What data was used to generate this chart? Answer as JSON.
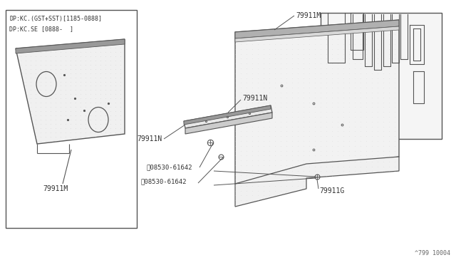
{
  "background_color": "#ffffff",
  "line_color": "#555555",
  "text_color": "#333333",
  "box_label_line1": "DP:KC.(GST+SST)[1185-0888]",
  "box_label_line2": "DP:KC.SE [0888-  ]",
  "footnote": "^799 10004",
  "fig_width": 6.4,
  "fig_height": 3.72,
  "dpi": 100
}
